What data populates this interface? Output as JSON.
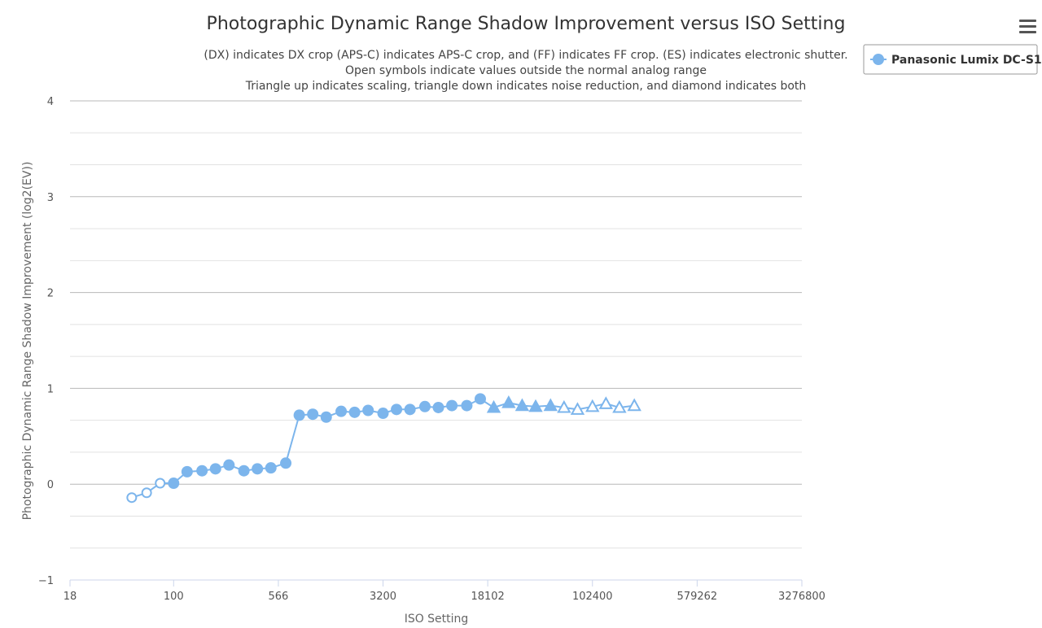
{
  "chart_data": {
    "type": "line",
    "title": "Photographic Dynamic Range Shadow Improvement versus ISO Setting",
    "subtitle": [
      "(DX) indicates DX crop (APS-C) indicates APS-C crop, and (FF) indicates FF crop. (ES) indicates electronic shutter.",
      "Open symbols indicate values outside the normal analog range",
      "Triangle up indicates scaling, triangle down indicates noise reduction, and diamond indicates both"
    ],
    "xlabel": "ISO Setting",
    "ylabel": "Photographic Dynamic Range Shadow Improvement (log2(EV))",
    "x_scale": "log2",
    "x_ticks": [
      "18",
      "100",
      "566",
      "3200",
      "18102",
      "102400",
      "579262",
      "3276800"
    ],
    "y_ticks": [
      "4",
      "3",
      "2",
      "1",
      "0",
      "−1"
    ],
    "ylim": [
      -1,
      4
    ],
    "grid": true,
    "legend_position": "top-right",
    "legend": {
      "label": "Panasonic Lumix DC-S1"
    },
    "series": [
      {
        "name": "Panasonic Lumix DC-S1",
        "color": "#7cb5ec",
        "points": [
          {
            "x": 50,
            "y": -0.14,
            "marker": "circle-open"
          },
          {
            "x": 64,
            "y": -0.09,
            "marker": "circle-open"
          },
          {
            "x": 80,
            "y": 0.01,
            "marker": "circle-open"
          },
          {
            "x": 100,
            "y": 0.01,
            "marker": "circle"
          },
          {
            "x": 125,
            "y": 0.13,
            "marker": "circle"
          },
          {
            "x": 160,
            "y": 0.14,
            "marker": "circle"
          },
          {
            "x": 200,
            "y": 0.16,
            "marker": "circle"
          },
          {
            "x": 250,
            "y": 0.2,
            "marker": "circle"
          },
          {
            "x": 320,
            "y": 0.14,
            "marker": "circle"
          },
          {
            "x": 400,
            "y": 0.16,
            "marker": "circle"
          },
          {
            "x": 500,
            "y": 0.17,
            "marker": "circle"
          },
          {
            "x": 640,
            "y": 0.22,
            "marker": "circle"
          },
          {
            "x": 800,
            "y": 0.72,
            "marker": "circle"
          },
          {
            "x": 1000,
            "y": 0.73,
            "marker": "circle"
          },
          {
            "x": 1250,
            "y": 0.7,
            "marker": "circle"
          },
          {
            "x": 1600,
            "y": 0.76,
            "marker": "circle"
          },
          {
            "x": 2000,
            "y": 0.75,
            "marker": "circle"
          },
          {
            "x": 2500,
            "y": 0.77,
            "marker": "circle"
          },
          {
            "x": 3200,
            "y": 0.74,
            "marker": "circle"
          },
          {
            "x": 4000,
            "y": 0.78,
            "marker": "circle"
          },
          {
            "x": 5000,
            "y": 0.78,
            "marker": "circle"
          },
          {
            "x": 6400,
            "y": 0.81,
            "marker": "circle"
          },
          {
            "x": 8000,
            "y": 0.8,
            "marker": "circle"
          },
          {
            "x": 10000,
            "y": 0.82,
            "marker": "circle"
          },
          {
            "x": 12800,
            "y": 0.82,
            "marker": "circle"
          },
          {
            "x": 16000,
            "y": 0.89,
            "marker": "circle"
          },
          {
            "x": 20000,
            "y": 0.8,
            "marker": "triangle"
          },
          {
            "x": 25600,
            "y": 0.85,
            "marker": "triangle"
          },
          {
            "x": 32000,
            "y": 0.82,
            "marker": "triangle"
          },
          {
            "x": 40000,
            "y": 0.81,
            "marker": "triangle"
          },
          {
            "x": 51200,
            "y": 0.82,
            "marker": "triangle"
          },
          {
            "x": 64000,
            "y": 0.8,
            "marker": "triangle-open"
          },
          {
            "x": 80000,
            "y": 0.78,
            "marker": "triangle-open"
          },
          {
            "x": 102400,
            "y": 0.81,
            "marker": "triangle-open"
          },
          {
            "x": 128000,
            "y": 0.84,
            "marker": "triangle-open"
          },
          {
            "x": 160000,
            "y": 0.8,
            "marker": "triangle-open"
          },
          {
            "x": 204800,
            "y": 0.82,
            "marker": "triangle-open"
          }
        ]
      }
    ]
  },
  "menu": {
    "icon": "hamburger-menu-icon"
  }
}
